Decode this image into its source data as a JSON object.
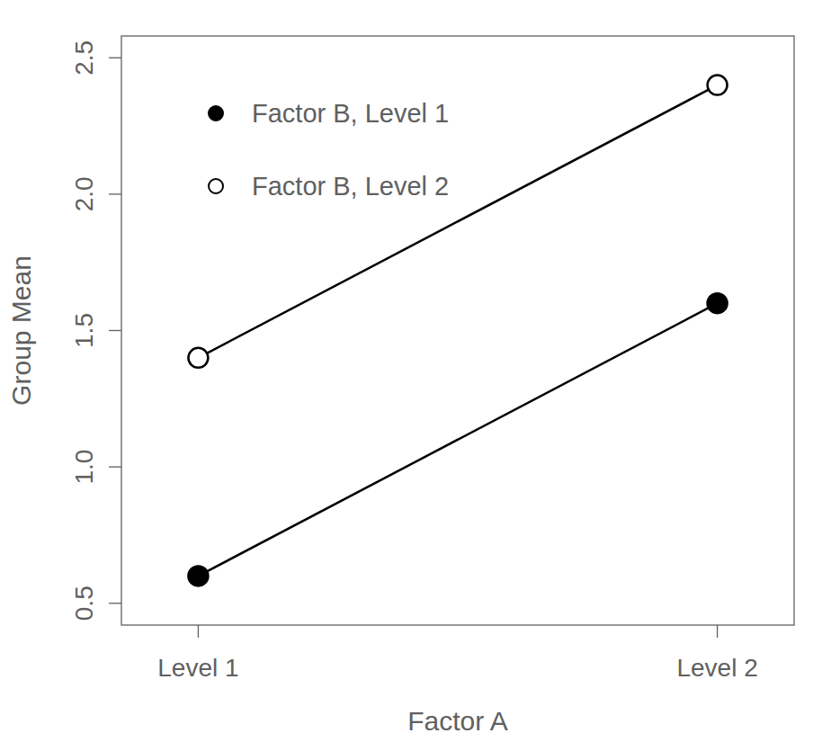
{
  "chart_data": {
    "type": "line",
    "x_label": "Factor A",
    "y_label": "Group Mean",
    "categories": [
      "Level 1",
      "Level 2"
    ],
    "series": [
      {
        "name": "Factor B, Level 1",
        "color": "#000000",
        "marker": "circle",
        "line_style": "solid",
        "values": [
          0.6,
          1.6
        ]
      },
      {
        "name": "Factor B, Level 2",
        "color": "#000000",
        "marker": "open",
        "line_style": "solid",
        "values": [
          1.4,
          2.4
        ]
      }
    ],
    "ylim": [
      0.42,
      2.58
    ],
    "yticks": [
      0.5,
      {
        "value": 1.0,
        "label": "1.0"
      },
      1.5,
      {
        "value": 2.0,
        "label": "2.0"
      },
      2.5
    ],
    "legend": "topleft",
    "grid": false
  }
}
